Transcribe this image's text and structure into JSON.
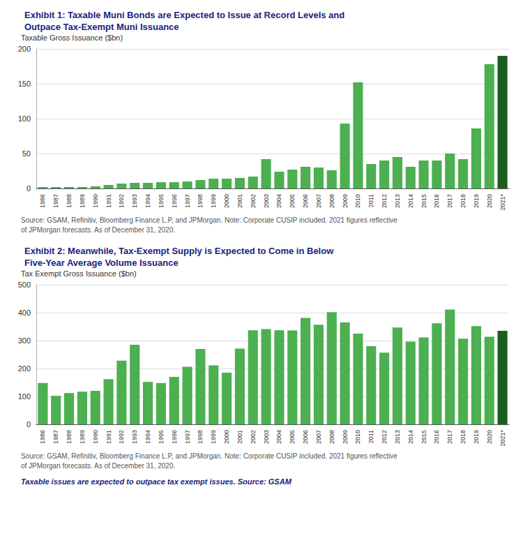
{
  "chart_data": [
    {
      "type": "bar",
      "title": "Exhibit 1: Taxable Muni Bonds are Expected to Issue at Record Levels and\nOutpace Tax-Exempt Muni Issuance",
      "ylabel": "Taxable Gross Issuance ($bn)",
      "categories": [
        "1986",
        "1987",
        "1988",
        "1989",
        "1990",
        "1991",
        "1992",
        "1993",
        "1994",
        "1995",
        "1996",
        "1997",
        "1998",
        "1999",
        "2000",
        "2001",
        "2002",
        "2003",
        "2004",
        "2005",
        "2006",
        "2007",
        "2008",
        "2009",
        "2010",
        "2011",
        "2012",
        "2013",
        "2014",
        "2015",
        "2016",
        "2017",
        "2018",
        "2019",
        "2020",
        "2021*"
      ],
      "values": [
        2,
        2,
        2,
        2,
        3,
        5,
        7,
        8,
        8,
        9,
        9,
        10,
        12,
        14,
        14,
        15,
        17,
        42,
        24,
        27,
        31,
        30,
        26,
        93,
        152,
        35,
        40,
        45,
        31,
        40,
        40,
        50,
        42,
        86,
        178,
        190
      ],
      "colors": [
        "#4caf50",
        "#4caf50",
        "#4caf50",
        "#4caf50",
        "#4caf50",
        "#4caf50",
        "#4caf50",
        "#4caf50",
        "#4caf50",
        "#4caf50",
        "#4caf50",
        "#4caf50",
        "#4caf50",
        "#4caf50",
        "#4caf50",
        "#4caf50",
        "#4caf50",
        "#4caf50",
        "#4caf50",
        "#4caf50",
        "#4caf50",
        "#4caf50",
        "#4caf50",
        "#4caf50",
        "#4caf50",
        "#4caf50",
        "#4caf50",
        "#4caf50",
        "#4caf50",
        "#4caf50",
        "#4caf50",
        "#4caf50",
        "#4caf50",
        "#4caf50",
        "#4caf50",
        "#1b5e20"
      ],
      "ylim": [
        0,
        200
      ],
      "yticks": [
        0,
        50,
        100,
        150,
        200
      ],
      "grid": true,
      "annotations": [
        "Source: GSAM, Refinitiv, Bloomberg Finance L.P, and JPMorgan. Note: Corporate CUSIP included. 2021 figures reflective",
        "of JPMorgan forecasts. As of December 31, 2020."
      ]
    },
    {
      "type": "bar",
      "title": "Exhibit 2: Meanwhile, Tax-Exempt Supply is Expected to Come in Below\nFive-Year Average Volume Issuance",
      "ylabel": "Tax Exempt Gross Issuance ($bn)",
      "categories": [
        "1986",
        "1987",
        "1988",
        "1989",
        "1990",
        "1991",
        "1992",
        "1993",
        "1994",
        "1995",
        "1996",
        "1997",
        "1998",
        "1999",
        "2000",
        "2001",
        "2002",
        "2003",
        "2004",
        "2005",
        "2006",
        "2007",
        "2008",
        "2009",
        "2010",
        "2011",
        "2012",
        "2013",
        "2014",
        "2015",
        "2016",
        "2017",
        "2018",
        "2019",
        "2020",
        "2021*"
      ],
      "values": [
        148,
        102,
        112,
        117,
        120,
        162,
        228,
        285,
        152,
        148,
        170,
        206,
        270,
        211,
        185,
        271,
        337,
        341,
        337,
        336,
        381,
        357,
        402,
        365,
        325,
        280,
        257,
        347,
        296,
        311,
        362,
        411,
        307,
        352,
        314,
        335
      ],
      "colors": [
        "#4caf50",
        "#4caf50",
        "#4caf50",
        "#4caf50",
        "#4caf50",
        "#4caf50",
        "#4caf50",
        "#4caf50",
        "#4caf50",
        "#4caf50",
        "#4caf50",
        "#4caf50",
        "#4caf50",
        "#4caf50",
        "#4caf50",
        "#4caf50",
        "#4caf50",
        "#4caf50",
        "#4caf50",
        "#4caf50",
        "#4caf50",
        "#4caf50",
        "#4caf50",
        "#4caf50",
        "#4caf50",
        "#4caf50",
        "#4caf50",
        "#4caf50",
        "#4caf50",
        "#4caf50",
        "#4caf50",
        "#4caf50",
        "#4caf50",
        "#4caf50",
        "#4caf50",
        "#1b5e20"
      ],
      "ylim": [
        0,
        500
      ],
      "yticks": [
        0,
        100,
        200,
        300,
        400,
        500
      ],
      "grid": true,
      "annotations": [
        "Source: GSAM, Refinitiv, Bloomberg Finance L.P, and JPMorgan. Note: Corporate CUSIP included. 2021 figures reflective",
        "of JPMorgan forecasts. As of December 31, 2020.",
        "Taxable issues are expected to outpace tax exempt issues. Source: GSAM"
      ]
    }
  ]
}
